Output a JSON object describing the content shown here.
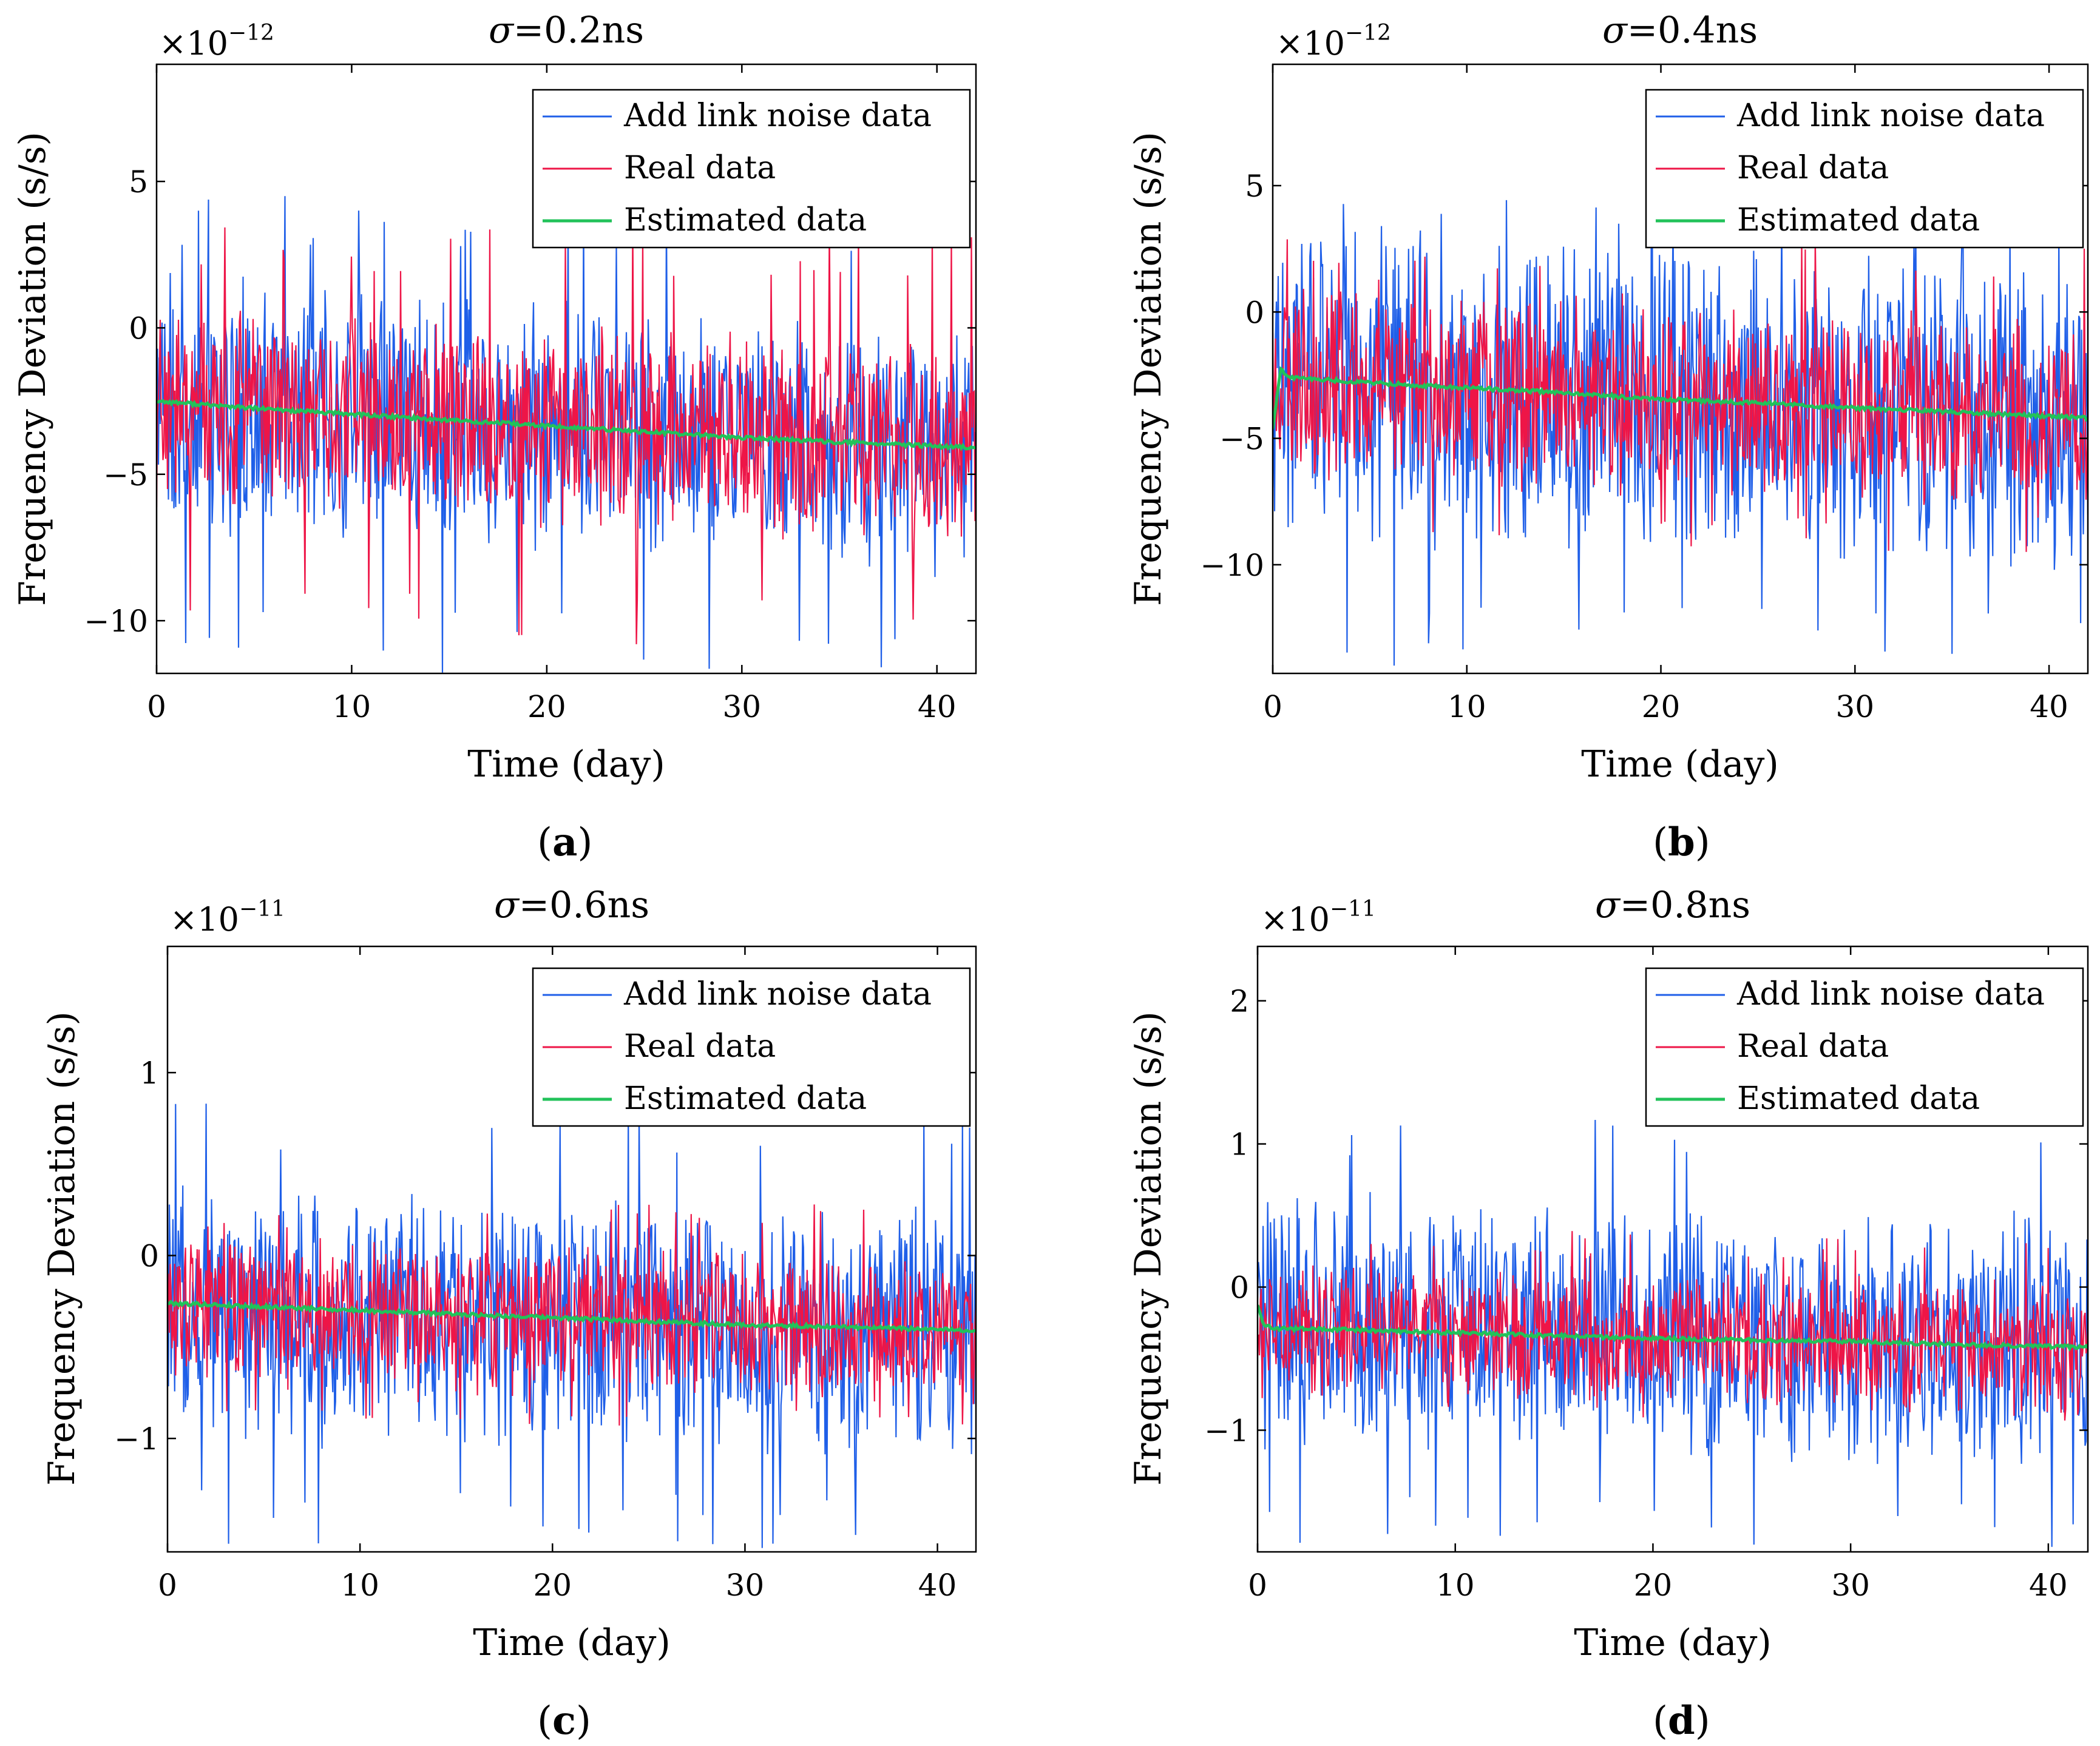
{
  "figure": {
    "line_colors": {
      "link_noise": "#1f5fe8",
      "real": "#ee1547",
      "estimated": "#22c25a"
    }
  },
  "chart_data": [
    {
      "type": "line",
      "label": "a",
      "title_prefix": "σ",
      "title_suffix": "=0.2ns",
      "xlabel": "Time (day)",
      "ylabel": "Frequency Deviation (s/s)",
      "scale_base": "×10",
      "scale_exp": "−12",
      "xlim": [
        0,
        42
      ],
      "ylim": [
        -11.8,
        9
      ],
      "xticks": [
        0,
        10,
        20,
        30,
        40
      ],
      "xtick_labels": [
        "0",
        "10",
        "20",
        "30",
        "40"
      ],
      "yticks": [
        -10,
        -5,
        0,
        5
      ],
      "ytick_labels": [
        "−10",
        "−5",
        "0",
        "5"
      ],
      "legend_loc": "top-right",
      "series": [
        {
          "name": "Add link noise data",
          "trend": [
            -2.7,
            -4.1
          ],
          "band": [
            -7.2,
            2.1
          ],
          "spike_max": 4.5,
          "spike_min": -11.8
        },
        {
          "name": "Real data",
          "trend": [
            -2.7,
            -4.1
          ],
          "band": [
            -6.3,
            1.0
          ],
          "spike_max": 3.5,
          "spike_min": -10.9
        },
        {
          "name": "Estimated data",
          "x": [
            0,
            5,
            10,
            15,
            20,
            25,
            30,
            35,
            42
          ],
          "values": [
            -2.5,
            -2.75,
            -2.95,
            -3.15,
            -3.35,
            -3.55,
            -3.75,
            -3.9,
            -4.1
          ]
        }
      ]
    },
    {
      "type": "line",
      "label": "b",
      "title_prefix": "σ",
      "title_suffix": "=0.4ns",
      "xlabel": "Time (day)",
      "ylabel": "Frequency Deviation (s/s)",
      "scale_base": "×10",
      "scale_exp": "−12",
      "xlim": [
        0,
        42
      ],
      "ylim": [
        -14.3,
        9.8
      ],
      "xticks": [
        0,
        10,
        20,
        30,
        40
      ],
      "xtick_labels": [
        "0",
        "10",
        "20",
        "30",
        "40"
      ],
      "yticks": [
        -10,
        -5,
        0,
        5
      ],
      "ytick_labels": [
        "−10",
        "−5",
        "0",
        "5"
      ],
      "legend_loc": "top-right",
      "series": [
        {
          "name": "Add link noise data",
          "trend": [
            -2.8,
            -4.3
          ],
          "band": [
            -9.5,
            3.8
          ],
          "spike_max": 4.6,
          "spike_min": -14.3
        },
        {
          "name": "Real data",
          "trend": [
            -2.8,
            -4.3
          ],
          "band": [
            -6.8,
            1.5
          ],
          "spike_max": 3.2,
          "spike_min": -9.5
        },
        {
          "name": "Estimated data",
          "x": [
            0,
            0.4,
            1,
            5,
            10,
            15,
            20,
            25,
            30,
            35,
            42
          ],
          "values": [
            -4.6,
            -2.3,
            -2.6,
            -2.8,
            -3.0,
            -3.2,
            -3.45,
            -3.6,
            -3.8,
            -3.95,
            -4.2
          ]
        }
      ]
    },
    {
      "type": "line",
      "label": "c",
      "title_prefix": "σ",
      "title_suffix": "=0.6ns",
      "xlabel": "Time (day)",
      "ylabel": "Frequency Deviation (s/s)",
      "scale_base": "×10",
      "scale_exp": "−11",
      "xlim": [
        0,
        42
      ],
      "ylim": [
        -1.62,
        1.69
      ],
      "xticks": [
        0,
        10,
        20,
        30,
        40
      ],
      "xtick_labels": [
        "0",
        "10",
        "20",
        "30",
        "40"
      ],
      "yticks": [
        -1,
        0,
        1
      ],
      "ytick_labels": [
        "−1",
        "0",
        "1"
      ],
      "legend_loc": "top-right",
      "series": [
        {
          "name": "Add link noise data",
          "trend": [
            -0.27,
            -0.42
          ],
          "band": [
            -1.05,
            0.42
          ],
          "spike_max": 0.85,
          "spike_min": -1.6
        },
        {
          "name": "Real data",
          "trend": [
            -0.27,
            -0.42
          ],
          "band": [
            -0.72,
            0.15
          ],
          "spike_max": 0.3,
          "spike_min": -0.95
        },
        {
          "name": "Estimated data",
          "x": [
            0,
            5,
            10,
            15,
            20,
            25,
            30,
            35,
            42
          ],
          "values": [
            -0.26,
            -0.28,
            -0.3,
            -0.32,
            -0.34,
            -0.36,
            -0.38,
            -0.39,
            -0.41
          ]
        }
      ]
    },
    {
      "type": "line",
      "label": "d",
      "title_prefix": "σ",
      "title_suffix": "=0.8ns",
      "xlabel": "Time (day)",
      "ylabel": "Frequency Deviation (s/s)",
      "scale_base": "×10",
      "scale_exp": "−11",
      "xlim": [
        0,
        42
      ],
      "ylim": [
        -1.85,
        2.38
      ],
      "xticks": [
        0,
        10,
        20,
        30,
        40
      ],
      "xtick_labels": [
        "0",
        "10",
        "20",
        "30",
        "40"
      ],
      "yticks": [
        -1,
        0,
        1,
        2
      ],
      "ytick_labels": [
        "−1",
        "0",
        "1",
        "2"
      ],
      "legend_loc": "top-right",
      "series": [
        {
          "name": "Add link noise data",
          "trend": [
            -0.28,
            -0.42
          ],
          "band": [
            -1.2,
            0.7
          ],
          "spike_max": 1.2,
          "spike_min": -1.85
        },
        {
          "name": "Real data",
          "trend": [
            -0.28,
            -0.42
          ],
          "band": [
            -0.8,
            0.2
          ],
          "spike_max": 0.4,
          "spike_min": -1.0
        },
        {
          "name": "Estimated data",
          "x": [
            0,
            0.3,
            1,
            5,
            10,
            15,
            20,
            25,
            30,
            35,
            42
          ],
          "values": [
            -0.12,
            -0.27,
            -0.29,
            -0.3,
            -0.32,
            -0.34,
            -0.36,
            -0.37,
            -0.38,
            -0.4,
            -0.42
          ]
        }
      ]
    }
  ]
}
